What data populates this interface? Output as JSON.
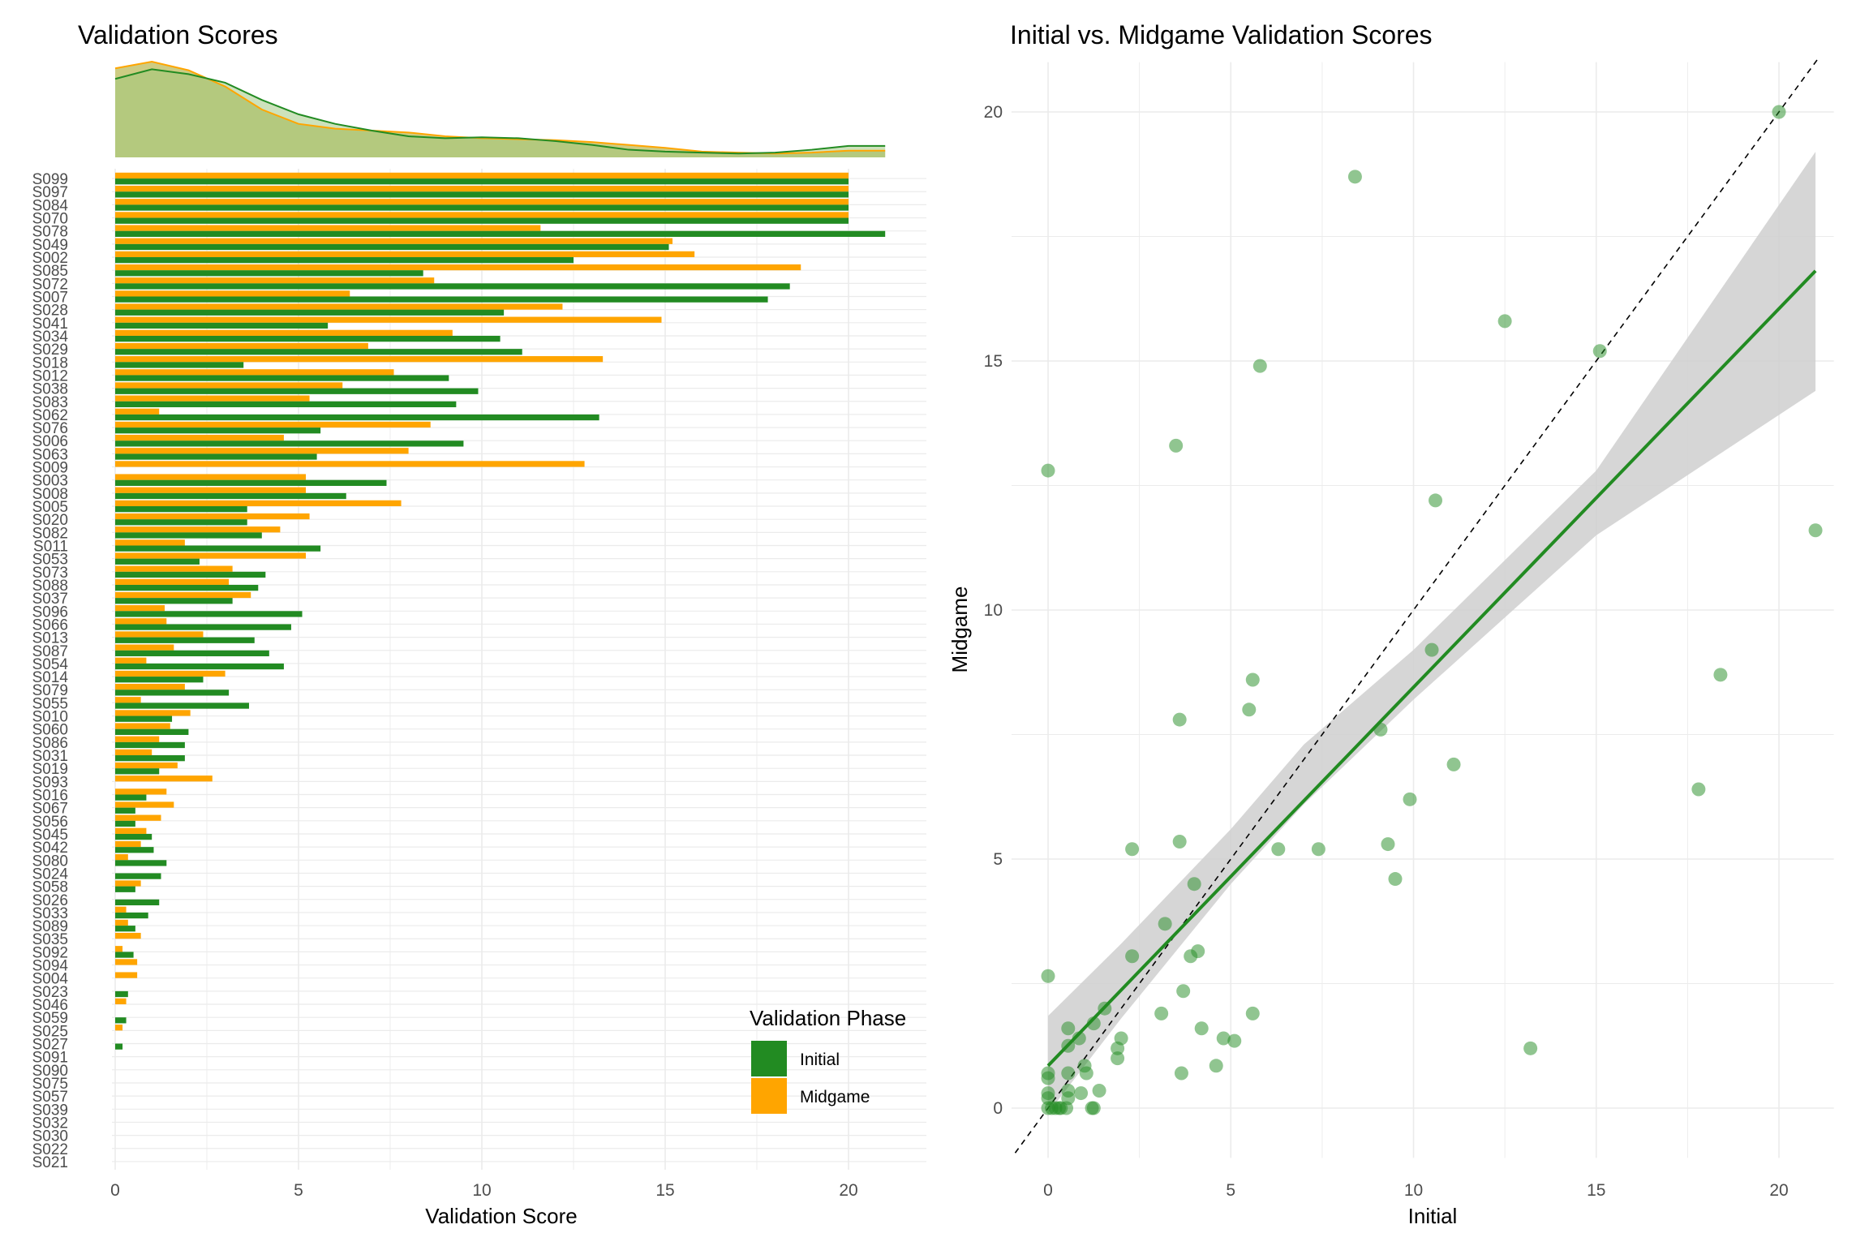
{
  "chart_data": [
    {
      "type": "bar",
      "orientation": "horizontal",
      "title": "Validation Scores",
      "xlabel": "Validation Score",
      "ylabel": "",
      "xlim": [
        0,
        21
      ],
      "xticks": [
        0,
        5,
        10,
        15,
        20
      ],
      "grid": true,
      "legend": {
        "title": "Validation Phase",
        "position": "bottom-right"
      },
      "colors": {
        "Initial": "#228B22",
        "Midgame": "#FFA500"
      },
      "categories": [
        "S099",
        "S097",
        "S084",
        "S070",
        "S078",
        "S049",
        "S002",
        "S085",
        "S072",
        "S007",
        "S028",
        "S041",
        "S034",
        "S029",
        "S018",
        "S012",
        "S038",
        "S083",
        "S062",
        "S076",
        "S006",
        "S063",
        "S009",
        "S003",
        "S008",
        "S005",
        "S020",
        "S082",
        "S011",
        "S053",
        "S073",
        "S088",
        "S037",
        "S096",
        "S066",
        "S013",
        "S087",
        "S054",
        "S014",
        "S079",
        "S055",
        "S010",
        "S060",
        "S086",
        "S031",
        "S019",
        "S093",
        "S016",
        "S067",
        "S056",
        "S045",
        "S042",
        "S080",
        "S024",
        "S058",
        "S026",
        "S033",
        "S089",
        "S035",
        "S092",
        "S094",
        "S004",
        "S023",
        "S046",
        "S059",
        "S025",
        "S027",
        "S091",
        "S090",
        "S075",
        "S057",
        "S039",
        "S032",
        "S030",
        "S022",
        "S021"
      ],
      "series": [
        {
          "name": "Initial",
          "values": [
            20,
            20,
            20,
            20,
            21,
            15.1,
            12.5,
            8.4,
            18.4,
            17.8,
            10.6,
            5.8,
            10.5,
            11.1,
            3.5,
            9.1,
            9.9,
            9.3,
            13.2,
            5.6,
            9.5,
            5.5,
            0,
            7.4,
            6.3,
            3.6,
            3.6,
            4.0,
            5.6,
            2.3,
            4.1,
            3.9,
            3.2,
            5.1,
            4.8,
            3.8,
            4.2,
            4.6,
            2.4,
            3.1,
            3.65,
            1.55,
            2.0,
            1.9,
            1.9,
            1.2,
            0,
            0.85,
            0.55,
            0.55,
            1.0,
            1.05,
            1.4,
            1.25,
            0.55,
            1.2,
            0.9,
            0.55,
            0,
            0.5,
            0,
            0,
            0.35,
            0,
            0.3,
            0,
            0.2,
            0,
            0,
            0,
            0,
            0,
            0,
            0,
            0,
            0
          ]
        },
        {
          "name": "Midgame",
          "values": [
            20,
            20,
            20,
            20,
            11.6,
            15.2,
            15.8,
            18.7,
            8.7,
            6.4,
            12.2,
            14.9,
            9.2,
            6.9,
            13.3,
            7.6,
            6.2,
            5.3,
            1.2,
            8.6,
            4.6,
            8.0,
            12.8,
            5.2,
            5.2,
            7.8,
            5.3,
            4.5,
            1.9,
            5.2,
            3.2,
            3.1,
            3.7,
            1.35,
            1.4,
            2.4,
            1.6,
            0.85,
            3.0,
            1.9,
            0.7,
            2.05,
            1.5,
            1.2,
            1.0,
            1.7,
            2.65,
            1.4,
            1.6,
            1.25,
            0.85,
            0.7,
            0.35,
            0,
            0.7,
            0,
            0.3,
            0.35,
            0.7,
            0.2,
            0.6,
            0.6,
            0,
            0.3,
            0,
            0.2,
            0,
            0,
            0,
            0,
            0,
            0,
            0,
            0,
            0,
            0
          ]
        }
      ],
      "density": {
        "x": [
          0,
          1,
          2,
          3,
          4,
          5,
          6,
          7,
          8,
          9,
          10,
          11,
          12,
          13,
          14,
          15,
          16,
          17,
          18,
          19,
          20,
          21
        ],
        "Initial": [
          0.82,
          0.92,
          0.87,
          0.78,
          0.6,
          0.45,
          0.35,
          0.28,
          0.22,
          0.2,
          0.21,
          0.2,
          0.17,
          0.13,
          0.08,
          0.06,
          0.05,
          0.04,
          0.05,
          0.08,
          0.12,
          0.12
        ],
        "Midgame": [
          0.93,
          1.0,
          0.91,
          0.74,
          0.5,
          0.35,
          0.3,
          0.28,
          0.26,
          0.22,
          0.2,
          0.19,
          0.18,
          0.16,
          0.13,
          0.1,
          0.06,
          0.05,
          0.04,
          0.05,
          0.07,
          0.07
        ],
        "fill": "#C8C676"
      }
    },
    {
      "type": "scatter",
      "title": "Initial vs. Midgame Validation Scores",
      "xlabel": "Initial",
      "ylabel": "Midgame",
      "xlim": [
        -1,
        21.5
      ],
      "ylim": [
        -1,
        21
      ],
      "xticks": [
        0,
        5,
        10,
        15,
        20
      ],
      "yticks": [
        0,
        5,
        10,
        15,
        20
      ],
      "grid": true,
      "point_color": "#228B22",
      "points": [
        {
          "x": 20,
          "y": 20
        },
        {
          "x": 21,
          "y": 11.6
        },
        {
          "x": 15.1,
          "y": 15.2
        },
        {
          "x": 12.5,
          "y": 15.8
        },
        {
          "x": 8.4,
          "y": 18.7
        },
        {
          "x": 18.4,
          "y": 8.7
        },
        {
          "x": 17.8,
          "y": 6.4
        },
        {
          "x": 10.6,
          "y": 12.2
        },
        {
          "x": 5.8,
          "y": 14.9
        },
        {
          "x": 10.5,
          "y": 9.2
        },
        {
          "x": 11.1,
          "y": 6.9
        },
        {
          "x": 3.5,
          "y": 13.3
        },
        {
          "x": 9.1,
          "y": 7.6
        },
        {
          "x": 9.9,
          "y": 6.2
        },
        {
          "x": 9.3,
          "y": 5.3
        },
        {
          "x": 13.2,
          "y": 1.2
        },
        {
          "x": 5.6,
          "y": 8.6
        },
        {
          "x": 9.5,
          "y": 4.6
        },
        {
          "x": 5.5,
          "y": 8.0
        },
        {
          "x": 0,
          "y": 12.8
        },
        {
          "x": 7.4,
          "y": 5.2
        },
        {
          "x": 6.3,
          "y": 5.2
        },
        {
          "x": 3.6,
          "y": 7.8
        },
        {
          "x": 3.6,
          "y": 5.35
        },
        {
          "x": 2.3,
          "y": 5.2
        },
        {
          "x": 4.0,
          "y": 4.5
        },
        {
          "x": 3.2,
          "y": 3.7
        },
        {
          "x": 4.1,
          "y": 3.15
        },
        {
          "x": 3.9,
          "y": 3.05
        },
        {
          "x": 2.3,
          "y": 3.05
        },
        {
          "x": 3.7,
          "y": 2.35
        },
        {
          "x": 3.1,
          "y": 1.9
        },
        {
          "x": 5.6,
          "y": 1.9
        },
        {
          "x": 4.2,
          "y": 1.6
        },
        {
          "x": 4.8,
          "y": 1.4
        },
        {
          "x": 5.1,
          "y": 1.35
        },
        {
          "x": 4.6,
          "y": 0.85
        },
        {
          "x": 3.65,
          "y": 0.7
        },
        {
          "x": 2.0,
          "y": 1.4
        },
        {
          "x": 1.9,
          "y": 1.2
        },
        {
          "x": 1.9,
          "y": 1.0
        },
        {
          "x": 1.55,
          "y": 2.0
        },
        {
          "x": 1.25,
          "y": 1.7
        },
        {
          "x": 1.05,
          "y": 0.7
        },
        {
          "x": 1.0,
          "y": 0.85
        },
        {
          "x": 0.85,
          "y": 1.4
        },
        {
          "x": 0.55,
          "y": 1.6
        },
        {
          "x": 0.55,
          "y": 1.25
        },
        {
          "x": 0.55,
          "y": 0.7
        },
        {
          "x": 1.4,
          "y": 0.35
        },
        {
          "x": 0.9,
          "y": 0.3
        },
        {
          "x": 0.55,
          "y": 0.35
        },
        {
          "x": 0.55,
          "y": 0.2
        },
        {
          "x": 1.2,
          "y": 0
        },
        {
          "x": 1.25,
          "y": 0
        },
        {
          "x": 0.35,
          "y": 0
        },
        {
          "x": 0.3,
          "y": 0
        },
        {
          "x": 0.2,
          "y": 0
        },
        {
          "x": 0.5,
          "y": 0
        },
        {
          "x": 0,
          "y": 0
        },
        {
          "x": 0,
          "y": 0.3
        },
        {
          "x": 0,
          "y": 0.6
        },
        {
          "x": 0,
          "y": 0.2
        },
        {
          "x": 0,
          "y": 0.7
        },
        {
          "x": 0,
          "y": 2.65
        },
        {
          "x": 0.1,
          "y": 0
        }
      ],
      "reference_line": {
        "type": "identity",
        "style": "dashed"
      },
      "fit": {
        "method": "lm",
        "intercept": 0.85,
        "slope": 0.76,
        "xrange": [
          0,
          21
        ],
        "se_band": true,
        "band_lower": [
          [
            0,
            -0.1
          ],
          [
            2,
            1.8
          ],
          [
            5,
            4.5
          ],
          [
            7,
            6.1
          ],
          [
            10,
            8.2
          ],
          [
            15,
            11.5
          ],
          [
            21,
            14.4
          ]
        ],
        "band_upper": [
          [
            0,
            1.85
          ],
          [
            2,
            3.3
          ],
          [
            5,
            5.6
          ],
          [
            7,
            7.3
          ],
          [
            10,
            9.2
          ],
          [
            15,
            12.8
          ],
          [
            21,
            19.2
          ]
        ]
      }
    }
  ]
}
